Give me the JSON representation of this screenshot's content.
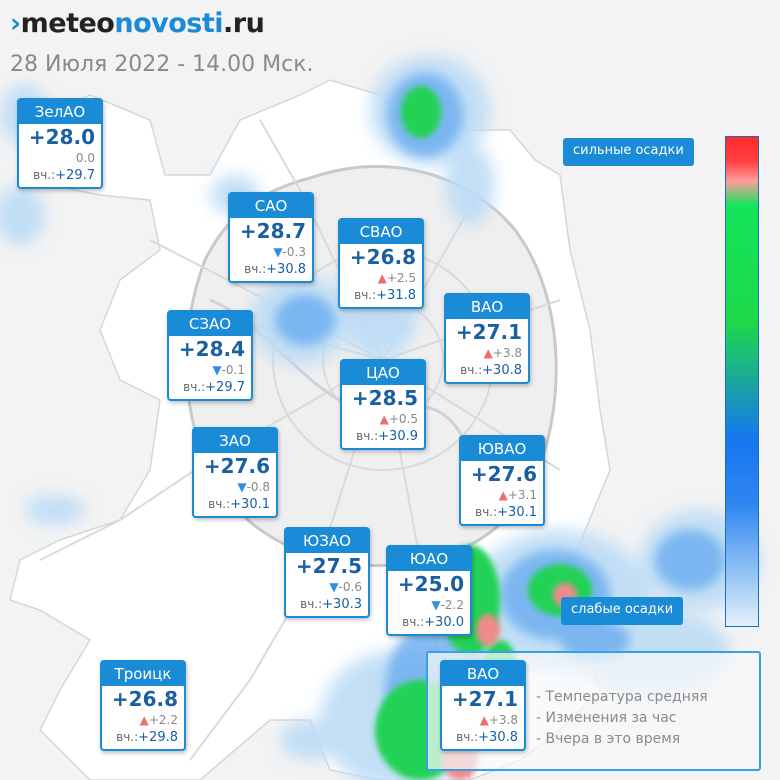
{
  "header": {
    "logo_mark": "›",
    "logo_meteo": "meteo",
    "logo_novosti": "novosti",
    "logo_tld": ".ru",
    "subtitle": "28 Июля 2022 - 14.00 Мск."
  },
  "scale": {
    "top_label": "сильные осадки",
    "bottom_label": "слабые осадки"
  },
  "cards": {
    "zelao": {
      "name": "ЗелАО",
      "temp": "+28.0",
      "arrow": "",
      "delta": "0.0",
      "yest_label": "вч.:",
      "yest": "+29.7"
    },
    "sao": {
      "name": "САО",
      "temp": "+28.7",
      "arrow": "▼",
      "delta": "-0.3",
      "yest_label": "вч.:",
      "yest": "+30.8"
    },
    "svao": {
      "name": "СВАО",
      "temp": "+26.8",
      "arrow": "▲",
      "delta": "+2.5",
      "yest_label": "вч.:",
      "yest": "+31.8"
    },
    "vao": {
      "name": "ВАО",
      "temp": "+27.1",
      "arrow": "▲",
      "delta": "+3.8",
      "yest_label": "вч.:",
      "yest": "+30.8"
    },
    "szao": {
      "name": "СЗАО",
      "temp": "+28.4",
      "arrow": "▼",
      "delta": "-0.1",
      "yest_label": "вч.:",
      "yest": "+29.7"
    },
    "cao": {
      "name": "ЦАО",
      "temp": "+28.5",
      "arrow": "▲",
      "delta": "+0.5",
      "yest_label": "вч.:",
      "yest": "+30.9"
    },
    "zao": {
      "name": "ЗАО",
      "temp": "+27.6",
      "arrow": "▼",
      "delta": "-0.8",
      "yest_label": "вч.:",
      "yest": "+30.1"
    },
    "yuvao": {
      "name": "ЮВАО",
      "temp": "+27.6",
      "arrow": "▲",
      "delta": "+3.1",
      "yest_label": "вч.:",
      "yest": "+30.1"
    },
    "yuzao": {
      "name": "ЮЗАО",
      "temp": "+27.5",
      "arrow": "▼",
      "delta": "-0.6",
      "yest_label": "вч.:",
      "yest": "+30.3"
    },
    "yuao": {
      "name": "ЮАО",
      "temp": "+25.0",
      "arrow": "▼",
      "delta": "-2.2",
      "yest_label": "вч.:",
      "yest": "+30.0"
    },
    "troitsk": {
      "name": "Троицк",
      "temp": "+26.8",
      "arrow": "▲",
      "delta": "+2.2",
      "yest_label": "вч.:",
      "yest": "+29.8"
    }
  },
  "legend": {
    "sample": {
      "name": "ВАО",
      "temp": "+27.1",
      "arrow": "▲",
      "delta": "+3.8",
      "yest_label": "вч.:",
      "yest": "+30.8"
    },
    "items": [
      "- Температура средняя",
      "- Изменения за час",
      "- Вчера в это время"
    ]
  },
  "colors": {
    "accent": "#1a8bd6",
    "temp_text": "#1a5fa0",
    "arrow_up": "#ef6e6e",
    "arrow_down": "#2f8ee0"
  }
}
